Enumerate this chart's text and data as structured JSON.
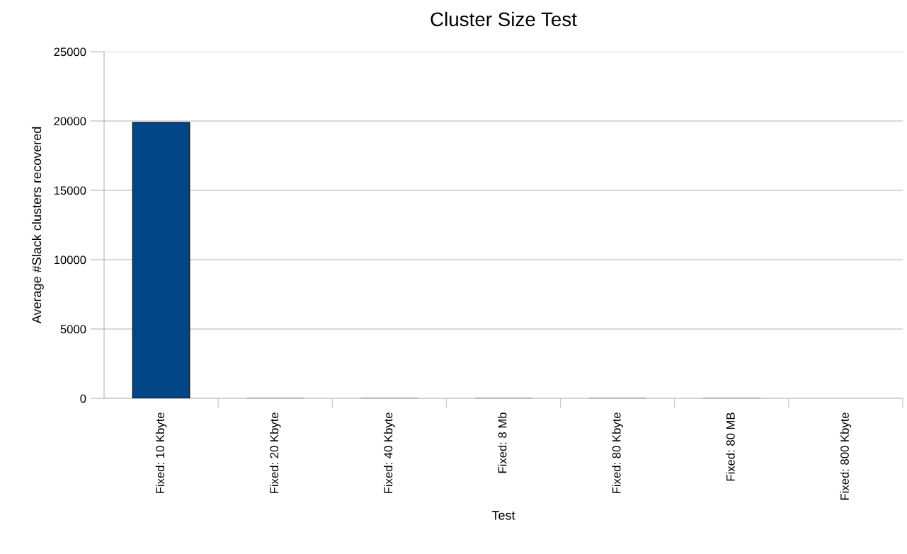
{
  "chart_data": {
    "type": "bar",
    "title": "Cluster Size Test",
    "xlabel": "Test",
    "ylabel": "Average #Slack clusters recovered",
    "categories": [
      "Fixed: 10 Kbyte",
      "Fixed: 20 Kbyte",
      "Fixed: 40 Kbyte",
      "Fixed: 8 Mb",
      "Fixed: 80 Kbyte",
      "Fixed: 80 MB",
      "Fixed: 800 Kbyte"
    ],
    "values": [
      19900,
      0,
      0,
      0,
      0,
      0,
      null
    ],
    "color": "#004586",
    "ylim": [
      0,
      25000
    ],
    "yticks": [
      0,
      5000,
      10000,
      15000,
      20000,
      25000
    ],
    "grid": "y",
    "legend": false
  }
}
